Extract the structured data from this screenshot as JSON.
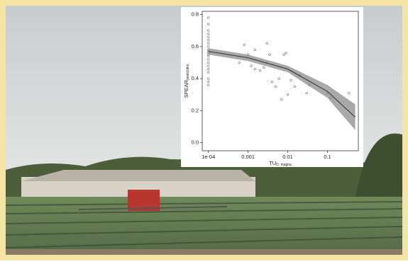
{
  "chart_data": {
    "type": "scatter",
    "xlabel": "TU",
    "xlabel_sub": "D. magna",
    "ylabel": "SPEAR",
    "ylabel_sub": "pesticides",
    "xlog": true,
    "xlim": [
      7e-05,
      0.6
    ],
    "ylim": [
      -0.05,
      0.82
    ],
    "xticks": [
      {
        "value": 0.0001,
        "label": "1e-04"
      },
      0.001,
      0.01,
      0.1
    ],
    "yticks": [
      {
        "value": 0,
        "label": "0.0"
      },
      0.2,
      0.4,
      0.6,
      0.8
    ],
    "point_color": "#888888",
    "line_color": "#333333",
    "band_color": "#a9a9a9",
    "points": {
      "x": [
        0.0001,
        0.0001,
        0.0001,
        0.0001,
        0.0001,
        0.0001,
        0.0001,
        0.0001,
        0.0001,
        0.0001,
        0.0001,
        0.0001,
        0.0001,
        0.0001,
        0.0001,
        0.0001,
        0.0001,
        0.0001,
        0.0001,
        0.0001,
        0.0001,
        0.0006,
        0.0008,
        0.001,
        0.0012,
        0.0015,
        0.0015,
        0.002,
        0.0025,
        0.003,
        0.003,
        0.0035,
        0.004,
        0.005,
        0.006,
        0.007,
        0.008,
        0.009,
        0.01,
        0.012,
        0.015,
        0.02,
        0.03,
        0.035,
        0.1,
        0.12,
        0.35
      ],
      "y": [
        0.78,
        0.74,
        0.7,
        0.68,
        0.66,
        0.64,
        0.62,
        0.6,
        0.58,
        0.57,
        0.56,
        0.55,
        0.54,
        0.52,
        0.5,
        0.48,
        0.46,
        0.44,
        0.4,
        0.38,
        0.36,
        0.5,
        0.61,
        0.55,
        0.48,
        0.58,
        0.46,
        0.45,
        0.47,
        0.62,
        0.5,
        0.55,
        0.38,
        0.35,
        0.4,
        0.27,
        0.55,
        0.56,
        0.3,
        0.39,
        0.35,
        0.42,
        0.31,
        0.36,
        0.31,
        0.28,
        0.31
      ]
    },
    "fit": {
      "x": [
        0.0001,
        0.001,
        0.01,
        0.1,
        0.5
      ],
      "y": [
        0.57,
        0.53,
        0.46,
        0.32,
        0.16
      ],
      "lower": [
        0.55,
        0.51,
        0.44,
        0.28,
        0.08
      ],
      "upper": [
        0.59,
        0.55,
        0.48,
        0.36,
        0.24
      ]
    }
  }
}
